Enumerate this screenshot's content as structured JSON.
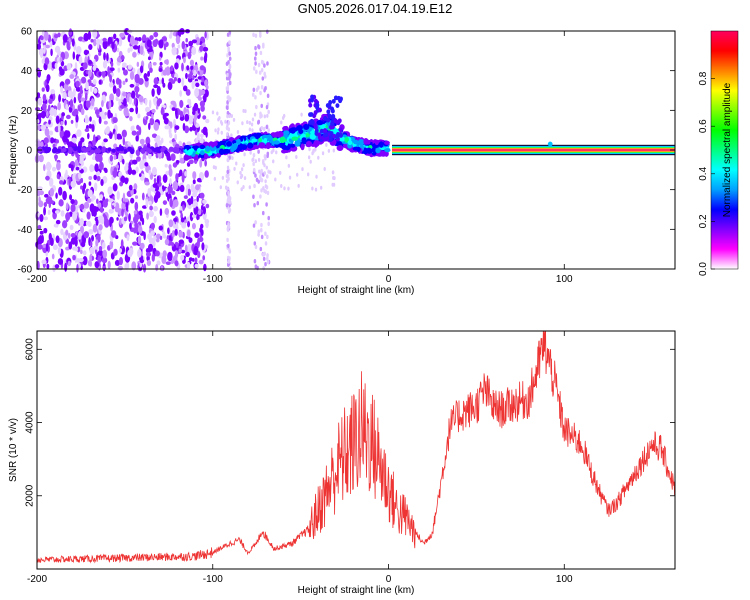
{
  "title": "GN05.2026.017.04.19.E12",
  "chart_data": [
    {
      "type": "heatmap",
      "name": "spectrogram",
      "xlabel": "Height of straight line (km)",
      "ylabel": "Frequency (Hz)",
      "xlim": [
        -200,
        163
      ],
      "ylim": [
        -60,
        60
      ],
      "xticks": [
        -200,
        -100,
        0,
        100
      ],
      "yticks": [
        -60,
        -40,
        -20,
        0,
        20,
        40,
        60
      ],
      "colorbar": {
        "label": "Normalized spectral amplitude",
        "range": [
          0,
          1
        ],
        "ticks": [
          0.0,
          0.2,
          0.4,
          0.6,
          0.8
        ],
        "colors": [
          "#ffffff",
          "#ff00ff",
          "#8000ff",
          "#0000ff",
          "#00a0ff",
          "#00ffff",
          "#00ff80",
          "#00ff00",
          "#80ff00",
          "#ffff00",
          "#ff8000",
          "#ff0000",
          "#ff0060"
        ]
      },
      "features": {
        "dc_line_frequency_hz": 0,
        "dc_line_from_km": 2,
        "noise_region_km": [
          -200,
          -103
        ],
        "stripe_regions_km": [
          [
            -92,
            -90
          ],
          [
            -77,
            -68
          ]
        ],
        "chirp_points": [
          [
            -115,
            -1
          ],
          [
            -100,
            0
          ],
          [
            -90,
            2
          ],
          [
            -80,
            4
          ],
          [
            -70,
            5
          ],
          [
            -60,
            5
          ],
          [
            -50,
            7
          ],
          [
            -40,
            9
          ],
          [
            -35,
            12
          ],
          [
            -30,
            8
          ],
          [
            -20,
            3
          ],
          [
            -10,
            1
          ],
          [
            0,
            1
          ]
        ],
        "spot_km": 92
      }
    },
    {
      "type": "line",
      "name": "snr",
      "xlabel": "Height of straight line (km)",
      "ylabel": "SNR (10 * v/v)",
      "xlim": [
        -200,
        163
      ],
      "ylim": [
        0,
        6500
      ],
      "xticks": [
        -200,
        -100,
        0,
        100
      ],
      "yticks": [
        2000,
        4000,
        6000
      ],
      "color": "#ee3333",
      "envelope": {
        "x": [
          -200,
          -150,
          -110,
          -100,
          -90,
          -85,
          -80,
          -75,
          -72,
          -65,
          -55,
          -45,
          -35,
          -30,
          -25,
          -20,
          -15,
          -10,
          -5,
          0,
          5,
          10,
          15,
          20,
          25,
          30,
          35,
          40,
          50,
          55,
          60,
          65,
          70,
          80,
          85,
          88,
          90,
          95,
          100,
          110,
          115,
          120,
          125,
          130,
          140,
          150,
          155,
          160,
          163
        ],
        "y": [
          250,
          300,
          350,
          450,
          700,
          800,
          450,
          700,
          1050,
          550,
          700,
          1100,
          2100,
          2700,
          3100,
          3400,
          3800,
          3500,
          2900,
          2200,
          1600,
          1400,
          1000,
          700,
          1000,
          2400,
          3900,
          4200,
          4450,
          4900,
          4400,
          4350,
          4500,
          4650,
          5500,
          6100,
          5900,
          5000,
          3800,
          3400,
          2700,
          2100,
          1600,
          1800,
          2600,
          3400,
          3300,
          2600,
          2200
        ]
      },
      "noise_amplitude": 0.12
    }
  ]
}
